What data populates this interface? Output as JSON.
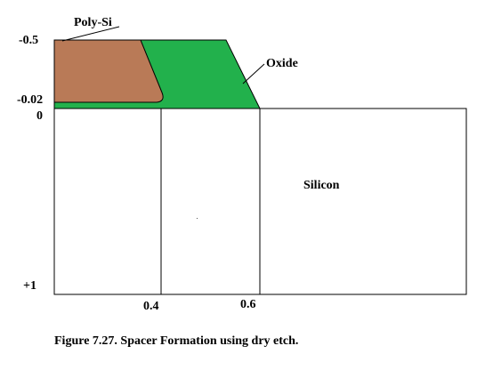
{
  "labels": {
    "poly": "Poly-Si",
    "oxide": "Oxide",
    "silicon": "Silicon"
  },
  "axis": {
    "y_ticks": [
      "-0.5",
      "-0.02",
      "0",
      "+1"
    ],
    "x_ticks": [
      "0.4",
      "0.6"
    ]
  },
  "caption": "Figure 7.27. Spacer Formation using dry etch.",
  "colors": {
    "poly": "#B97A57",
    "oxide": "#22B14C",
    "silicon": "#FFFFFF",
    "outline": "#000000"
  }
}
